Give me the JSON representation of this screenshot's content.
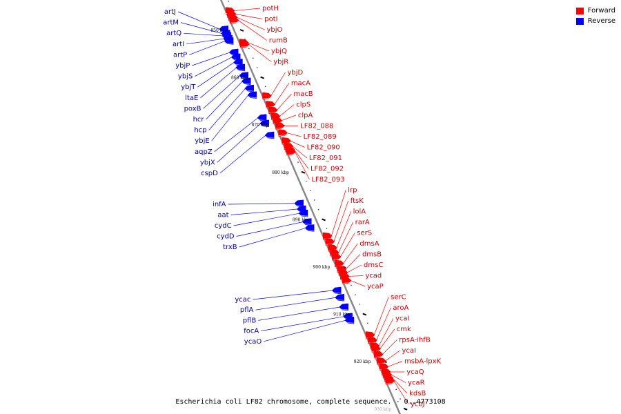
{
  "colors": {
    "forward": "#ff0000",
    "reverse": "#0000ff",
    "forward_text": "#cc0000",
    "reverse_text": "#000099",
    "backbone": "#888888"
  },
  "legend": {
    "forward_label": "Forward",
    "reverse_label": "Reverse"
  },
  "caption": "Escherichia coli LF82 chromosome, complete sequence. - 0..4773108",
  "kbp_labels": [
    "850 kbp",
    "860 kbp",
    "870 kbp",
    "880 kbp",
    "890 kbp",
    "900 kbp",
    "910 kbp",
    "920 kbp",
    "930 kbp"
  ],
  "forward_genes": [
    {
      "name": "potH",
      "kbp": 846.0
    },
    {
      "name": "potI",
      "kbp": 846.7
    },
    {
      "name": "ybjO",
      "kbp": 847.4
    },
    {
      "name": "rumB",
      "kbp": 848.0
    },
    {
      "name": "ybjQ",
      "kbp": 852.7
    },
    {
      "name": "ybjR",
      "kbp": 853.1
    },
    {
      "name": "ybjD",
      "kbp": 864.0
    },
    {
      "name": "macA",
      "kbp": 865.8
    },
    {
      "name": "macB",
      "kbp": 867.0
    },
    {
      "name": "clpS",
      "kbp": 868.3
    },
    {
      "name": "clpA",
      "kbp": 869.2
    },
    {
      "name": "LF82_088",
      "kbp": 870.3
    },
    {
      "name": "LF82_089",
      "kbp": 871.8
    },
    {
      "name": "LF82_090",
      "kbp": 873.5
    },
    {
      "name": "LF82_091",
      "kbp": 874.6
    },
    {
      "name": "LF82_092",
      "kbp": 875.3
    },
    {
      "name": "LF82_093",
      "kbp": 875.8
    },
    {
      "name": "lrp",
      "kbp": 893.6
    },
    {
      "name": "ftsK",
      "kbp": 894.8
    },
    {
      "name": "lolA",
      "kbp": 896.1
    },
    {
      "name": "rarA",
      "kbp": 897.1
    },
    {
      "name": "serS",
      "kbp": 898.0
    },
    {
      "name": "dmsA",
      "kbp": 899.4
    },
    {
      "name": "dmsB",
      "kbp": 900.6
    },
    {
      "name": "dmsC",
      "kbp": 901.3
    },
    {
      "name": "ycad",
      "kbp": 902.1
    },
    {
      "name": "ycaP",
      "kbp": 903.0
    },
    {
      "name": "serC",
      "kbp": 914.5
    },
    {
      "name": "aroA",
      "kbp": 915.6
    },
    {
      "name": "ycaI",
      "kbp": 916.8
    },
    {
      "name": "cmk",
      "kbp": 917.4
    },
    {
      "name": "rpsA-ihfB",
      "kbp": 918.6
    },
    {
      "name": "ycaI",
      "kbp": 920.0
    },
    {
      "name": "msbA-lpxK",
      "kbp": 921.2
    },
    {
      "name": "ycaQ",
      "kbp": 922.3
    },
    {
      "name": "ycaR",
      "kbp": 922.9
    },
    {
      "name": "kdsB",
      "kbp": 923.6
    },
    {
      "name": "ycbJ",
      "kbp": 924.2
    }
  ],
  "reverse_genes": [
    {
      "name": "artJ",
      "kbp": 849.9
    },
    {
      "name": "artM",
      "kbp": 850.8
    },
    {
      "name": "artQ",
      "kbp": 851.3
    },
    {
      "name": "artI",
      "kbp": 851.9
    },
    {
      "name": "artP",
      "kbp": 852.4
    },
    {
      "name": "ybjP",
      "kbp": 854.8
    },
    {
      "name": "ybjS",
      "kbp": 855.8
    },
    {
      "name": "ybjT",
      "kbp": 856.9
    },
    {
      "name": "ltaE",
      "kbp": 858.0
    },
    {
      "name": "poxB",
      "kbp": 859.7
    },
    {
      "name": "hcr",
      "kbp": 860.9
    },
    {
      "name": "hcp",
      "kbp": 862.4
    },
    {
      "name": "ybjE",
      "kbp": 863.8
    },
    {
      "name": "aqpZ",
      "kbp": 868.6
    },
    {
      "name": "ybjX",
      "kbp": 869.8
    },
    {
      "name": "cspD",
      "kbp": 872.3
    },
    {
      "name": "infA",
      "kbp": 886.7
    },
    {
      "name": "aat",
      "kbp": 887.9
    },
    {
      "name": "cydC",
      "kbp": 888.8
    },
    {
      "name": "cydD",
      "kbp": 890.6
    },
    {
      "name": "trxB",
      "kbp": 891.9
    },
    {
      "name": "ycac",
      "kbp": 905.1
    },
    {
      "name": "pflA",
      "kbp": 906.6
    },
    {
      "name": "pflB",
      "kbp": 908.6
    },
    {
      "name": "focA",
      "kbp": 910.6
    },
    {
      "name": "ycaO",
      "kbp": 911.4
    }
  ]
}
